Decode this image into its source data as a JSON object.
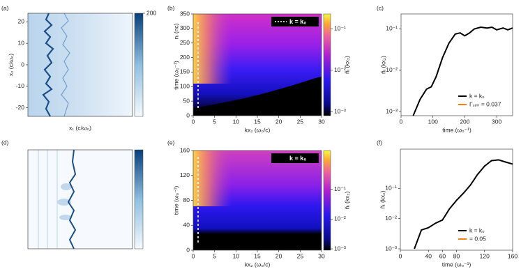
{
  "chart_data": [
    {
      "type": "image",
      "panel": "(a)",
      "xlabel": "x₁ (c/ω₀)",
      "ylabel": "x₂ (c/ω₀)",
      "ylim": [
        -24,
        24
      ],
      "yticks": [
        -20,
        -10,
        0,
        10,
        20
      ],
      "colormap": "Blues",
      "clim": [
        0,
        200
      ],
      "cticks": [
        200
      ]
    },
    {
      "type": "heatmap",
      "panel": "(b)",
      "xlabel": "kx₂ (ω₀/c)",
      "ylabel": "time (ω₀⁻¹)",
      "ylabel2": "nᵢ (nc)",
      "xlim": [
        0,
        30
      ],
      "xticks": [
        0,
        5,
        10,
        15,
        20,
        25,
        30
      ],
      "ylim": [
        0,
        350
      ],
      "yticks": [
        0,
        50,
        100,
        150,
        200,
        250,
        300,
        350
      ],
      "legend_label": "k = k₀",
      "colormap": "plasma",
      "clabel": "ñᵢ (kx₂)",
      "clog": true,
      "clim": [
        0.0008,
        0.23
      ],
      "cticks": [
        {
          "value": 0.001,
          "label": "10⁻³"
        },
        {
          "value": 0.01,
          "label": "10⁻²"
        },
        {
          "value": 0.1,
          "label": "10⁻¹"
        }
      ]
    },
    {
      "type": "line",
      "panel": "(c)",
      "xlabel": "time (ω₀⁻¹)",
      "ylabel": "ñᵢ (kx₂)",
      "xlim": [
        0,
        350
      ],
      "xticks": [
        0,
        100,
        200,
        300
      ],
      "ylog": true,
      "ylim": [
        0.0008,
        0.23
      ],
      "yticks": [
        {
          "value": 0.001,
          "label": "10⁻³"
        },
        {
          "value": 0.01,
          "label": "10⁻²"
        },
        {
          "value": 0.1,
          "label": "10⁻¹"
        }
      ],
      "legend": "lower right",
      "series": [
        {
          "name": "k = k₀",
          "color": "#000000",
          "x": [
            38,
            60,
            80,
            95,
            110,
            130,
            150,
            170,
            185,
            200,
            215,
            230,
            250,
            270,
            285,
            300,
            320,
            335,
            350
          ],
          "values": [
            0.0008,
            0.002,
            0.0035,
            0.004,
            0.007,
            0.02,
            0.045,
            0.075,
            0.08,
            0.068,
            0.08,
            0.1,
            0.11,
            0.105,
            0.11,
            0.095,
            0.105,
            0.095,
            0.105
          ]
        },
        {
          "name": "Γₛᵢₘ = 0.037",
          "color": "#ff7f0e"
        }
      ]
    },
    {
      "type": "image",
      "panel": "(d)",
      "colormap": "Blues"
    },
    {
      "type": "heatmap",
      "panel": "(e)",
      "xlabel": "kx₂ (ω₀/c)",
      "ylabel": "time (ω₀⁻¹)",
      "xlim": [
        0,
        30
      ],
      "xticks": [
        0,
        5,
        10,
        15,
        20,
        25,
        30
      ],
      "ylim": [
        0,
        160
      ],
      "yticks": [
        0,
        40,
        80,
        120,
        160
      ],
      "legend_label": "k = k₀",
      "colormap": "plasma",
      "clabel": "ñᵢ (kx₂)",
      "clog": true,
      "clim": [
        0.0009,
        2
      ],
      "cticks": [
        {
          "value": 0.001,
          "label": "10⁻³"
        },
        {
          "value": 0.01,
          "label": "10⁻²"
        },
        {
          "value": 0.1,
          "label": "10⁻¹"
        }
      ]
    },
    {
      "type": "line",
      "panel": "(f)",
      "xlabel": "time (ω₀⁻¹)",
      "ylabel": "ñᵢ (kx₂)",
      "xlim": [
        0,
        160
      ],
      "xticks": [
        0,
        40,
        60,
        80,
        120,
        160
      ],
      "ylog": true,
      "ylim": [
        0.0009,
        2
      ],
      "yticks": [
        {
          "value": 0.001,
          "label": "10⁻³"
        },
        {
          "value": 0.01,
          "label": "10⁻²"
        },
        {
          "value": 0.1,
          "label": "10⁻¹"
        }
      ],
      "legend": "lower right",
      "series": [
        {
          "name": "k = k₀",
          "color": "#000000",
          "x": [
            20,
            30,
            40,
            50,
            60,
            70,
            80,
            90,
            100,
            110,
            120,
            130,
            140,
            150,
            160
          ],
          "values": [
            0.001,
            0.0042,
            0.005,
            0.007,
            0.009,
            0.021,
            0.04,
            0.07,
            0.13,
            0.29,
            0.55,
            0.83,
            0.88,
            0.75,
            0.64
          ]
        },
        {
          "name": "= 0.05",
          "color": "#ff7f0e"
        }
      ]
    }
  ]
}
